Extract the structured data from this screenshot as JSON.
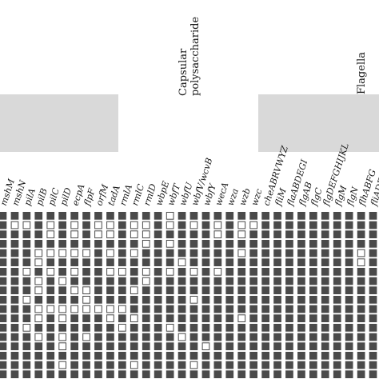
{
  "colors": {
    "present": "#4a4a4a",
    "absent": "#ffffff",
    "grid_line": "#4a4a4a",
    "group_shade": "#d9d9d9"
  },
  "group_labels": {
    "capsular_line1": "Capsular",
    "capsular_line2": "polysaccharide",
    "flagella": "Flagella"
  },
  "genes": [
    "mshM",
    "mshN",
    "pilA",
    "pilB",
    "pilC",
    "pilD",
    "ecpA",
    "flpF",
    "orfM",
    "tadA",
    "rmlA",
    "rmlC",
    "rmlD",
    "wbpE",
    "wbfT",
    "wbfU",
    "wbfV/wcvB",
    "wbfY",
    "wecA",
    "wza",
    "wzb",
    "wzc",
    "cheABRVWYZ",
    "fliM",
    "flaABDEGI",
    "flgAB",
    "flgC",
    "flgDEFGHIJKL",
    "flgM",
    "flgN",
    "flhABFG",
    "fliADEFGHIJK"
  ],
  "matrix": [
    "11111111111111011111111111111111",
    "10010101001001010101001111111111",
    "11110101001001111101011111111111",
    "11111111111101011111111111111111",
    "11100000101011111111011111111101",
    "11101111111111101111111111111101",
    "11010101100101010101111111111111",
    "11101011111101111111111111111111",
    "11101100111011111111111111111111",
    "11011110111111110111111111111111",
    "11100000000111111111111111111111",
    "11101011101011111111011111111111",
    "11011111110111011111111111111111",
    "11101010111111101111111111111111",
    "11111011111111111011111111111111",
    "11111111111111111111111111111111",
    "11111011111011110111111111111111",
    "11111111111111111111111111111111"
  ]
}
